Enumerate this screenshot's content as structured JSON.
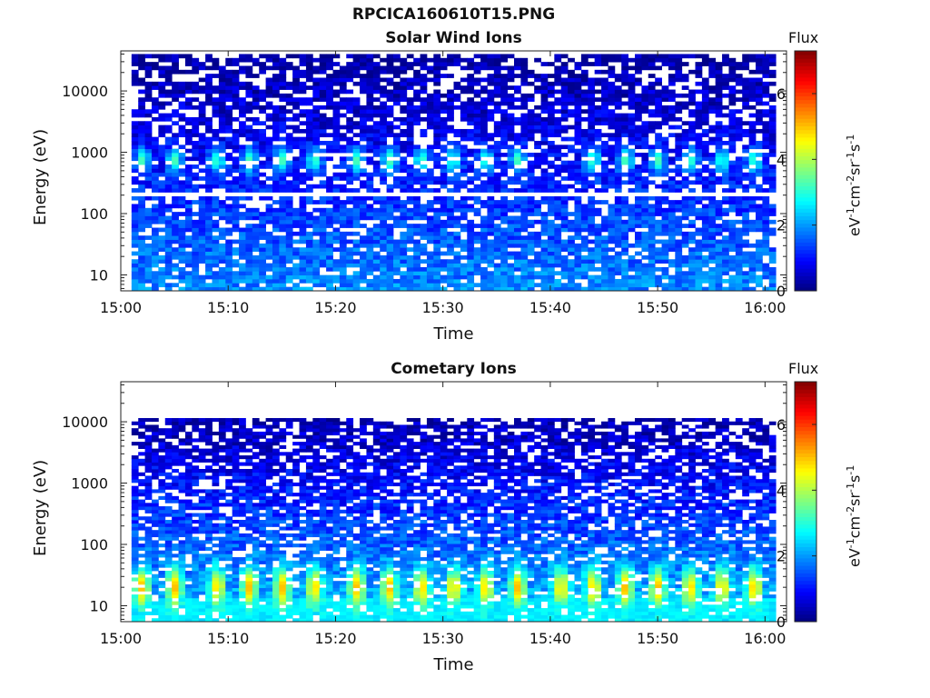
{
  "figure": {
    "title": "RPCICA160610T15.PNG"
  },
  "colors": {
    "colormap": "jet",
    "nodata": "#ffffff",
    "axis": "#222222"
  },
  "chart_data": [
    {
      "type": "heatmap",
      "title": "Solar Wind Ions",
      "xlabel": "Time",
      "ylabel": "Energy (eV)",
      "yscale": "log",
      "xlim": [
        "15:00",
        "16:02"
      ],
      "ylim": [
        5.5,
        45000
      ],
      "xticks": [
        "15:00",
        "15:10",
        "15:20",
        "15:30",
        "15:40",
        "15:50",
        "16:00"
      ],
      "yticks": [
        "10",
        "100",
        "1000",
        "10000"
      ],
      "data_time_range": [
        "15:01",
        "16:01"
      ],
      "data_energy_range": [
        5.5,
        40000
      ],
      "time_bins": 96,
      "energy_bins": 60,
      "gap_energy": 200,
      "colorbar": {
        "title": "Flux",
        "label_base": "eV",
        "label_parts": [
          "-1",
          "cm",
          "-2",
          "sr",
          "-1",
          "s",
          "-1"
        ],
        "range": [
          0,
          7.3
        ],
        "ticks": [
          "0",
          "2",
          "4",
          "6"
        ]
      },
      "features": {
        "pulse_energy_eV": 750,
        "pulse_peak_level": 3.4,
        "pulse_times": [
          "15:02",
          "15:05",
          "15:09",
          "15:12",
          "15:15",
          "15:18",
          "15:22",
          "15:25",
          "15:28",
          "15:31",
          "15:34",
          "15:37",
          "15:44",
          "15:47",
          "15:50",
          "15:53",
          "15:56",
          "15:59"
        ],
        "background_level_high_energy": 0.2,
        "background_level_low_energy": 1.9
      }
    },
    {
      "type": "heatmap",
      "title": "Cometary Ions",
      "xlabel": "Time",
      "ylabel": "Energy (eV)",
      "yscale": "log",
      "xlim": [
        "15:00",
        "16:02"
      ],
      "ylim": [
        5.5,
        45000
      ],
      "xticks": [
        "15:00",
        "15:10",
        "15:20",
        "15:30",
        "15:40",
        "15:50",
        "16:00"
      ],
      "yticks": [
        "10",
        "100",
        "1000",
        "10000"
      ],
      "data_time_range": [
        "15:01",
        "16:01"
      ],
      "data_energy_range": [
        5.5,
        11500
      ],
      "time_bins": 96,
      "energy_bins": 60,
      "colorbar": {
        "title": "Flux",
        "label_base": "eV",
        "label_parts": [
          "-1",
          "cm",
          "-2",
          "sr",
          "-1",
          "s",
          "-1"
        ],
        "range": [
          0,
          7.3
        ],
        "ticks": [
          "0",
          "2",
          "4",
          "6"
        ]
      },
      "features": {
        "pulse_energy_eV": 20,
        "pulse_peak_level": 5.2,
        "pulse_times": [
          "15:02",
          "15:05",
          "15:09",
          "15:12",
          "15:15",
          "15:18",
          "15:22",
          "15:25",
          "15:28",
          "15:31",
          "15:34",
          "15:37",
          "15:41",
          "15:44",
          "15:47",
          "15:50",
          "15:53",
          "15:56",
          "15:59"
        ],
        "background_level_high_energy": 0.3,
        "background_level_low_energy": 2.4
      }
    }
  ]
}
